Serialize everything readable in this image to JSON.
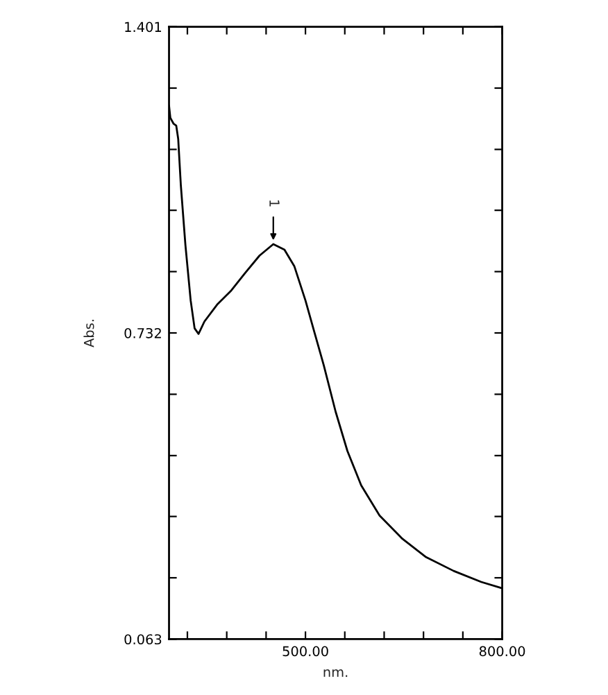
{
  "chart_data": {
    "type": "line",
    "xlabel": "nm.",
    "ylabel": "Abs.",
    "xlim": [
      292,
      800
    ],
    "ylim": [
      0.063,
      1.401
    ],
    "xticks": [
      {
        "value": 320,
        "label": null
      },
      {
        "value": 380,
        "label": null
      },
      {
        "value": 440,
        "label": null
      },
      {
        "value": 500,
        "label": "500.00"
      },
      {
        "value": 560,
        "label": null
      },
      {
        "value": 620,
        "label": null
      },
      {
        "value": 680,
        "label": null
      },
      {
        "value": 740,
        "label": null
      },
      {
        "value": 800,
        "label": "800.00"
      }
    ],
    "yticks": [
      {
        "value": 0.063,
        "label": "0.063"
      },
      {
        "value": 0.197,
        "label": null
      },
      {
        "value": 0.331,
        "label": null
      },
      {
        "value": 0.464,
        "label": null
      },
      {
        "value": 0.598,
        "label": null
      },
      {
        "value": 0.732,
        "label": "0.732"
      },
      {
        "value": 0.866,
        "label": null
      },
      {
        "value": 1.0,
        "label": null
      },
      {
        "value": 1.133,
        "label": null
      },
      {
        "value": 1.267,
        "label": null
      },
      {
        "value": 1.401,
        "label": "1.401"
      }
    ],
    "grid": false,
    "legend": false,
    "series": [
      {
        "color": "#000000",
        "x": [
          292,
          294,
          299,
          303,
          306,
          310,
          317,
          325,
          331,
          337,
          346,
          366,
          387,
          408,
          430,
          451,
          468,
          483,
          500,
          514,
          528,
          546,
          564,
          585,
          613,
          648,
          684,
          726,
          768,
          800
        ],
        "values": [
          1.229,
          1.202,
          1.189,
          1.185,
          1.156,
          1.055,
          0.924,
          0.803,
          0.742,
          0.73,
          0.757,
          0.795,
          0.825,
          0.863,
          0.901,
          0.926,
          0.914,
          0.878,
          0.803,
          0.732,
          0.661,
          0.56,
          0.474,
          0.399,
          0.333,
          0.282,
          0.242,
          0.212,
          0.188,
          0.174
        ]
      }
    ],
    "annotations": [
      {
        "text": "1",
        "x": 451,
        "y": 0.926
      }
    ]
  }
}
